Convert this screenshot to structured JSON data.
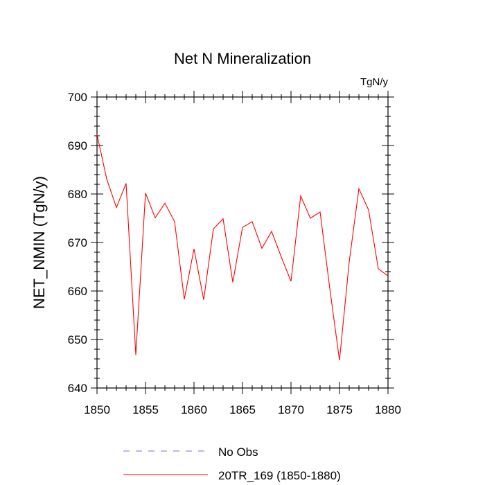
{
  "chart_data": {
    "type": "line",
    "title": "Net N Mineralization",
    "units": "TgN/y",
    "xlabel": "",
    "ylabel": "NET_NMIN  (TgN/y)",
    "xlim": [
      1850,
      1880
    ],
    "ylim": [
      640,
      700
    ],
    "x_ticks": [
      1850,
      1855,
      1860,
      1865,
      1870,
      1875,
      1880
    ],
    "y_ticks": [
      640,
      650,
      660,
      670,
      680,
      690,
      700
    ],
    "grid": false,
    "legend_position": "bottom-center",
    "series": [
      {
        "name": "20TR_169 (1850-1880)",
        "color": "#ff0000",
        "style": "solid",
        "x": [
          1850,
          1851,
          1852,
          1853,
          1854,
          1855,
          1856,
          1857,
          1858,
          1859,
          1860,
          1861,
          1862,
          1863,
          1864,
          1865,
          1866,
          1867,
          1868,
          1869,
          1870,
          1871,
          1872,
          1873,
          1874,
          1875,
          1876,
          1877,
          1878,
          1879,
          1880
        ],
        "values": [
          692.3,
          683.1,
          677.2,
          682.2,
          646.8,
          680.2,
          675.1,
          678.1,
          674.3,
          658.3,
          668.7,
          658.2,
          672.8,
          674.9,
          661.8,
          673.1,
          674.3,
          668.8,
          672.3,
          667.0,
          662.0,
          679.6,
          675.0,
          676.3,
          660.5,
          645.7,
          666.0,
          681.1,
          676.7,
          664.6,
          663.1
        ]
      }
    ],
    "legend": [
      {
        "label": "No Obs",
        "color": "#6f6fff",
        "style": "dashed"
      },
      {
        "label": "20TR_169 (1850-1880)",
        "color": "#ff0000",
        "style": "solid"
      }
    ]
  }
}
